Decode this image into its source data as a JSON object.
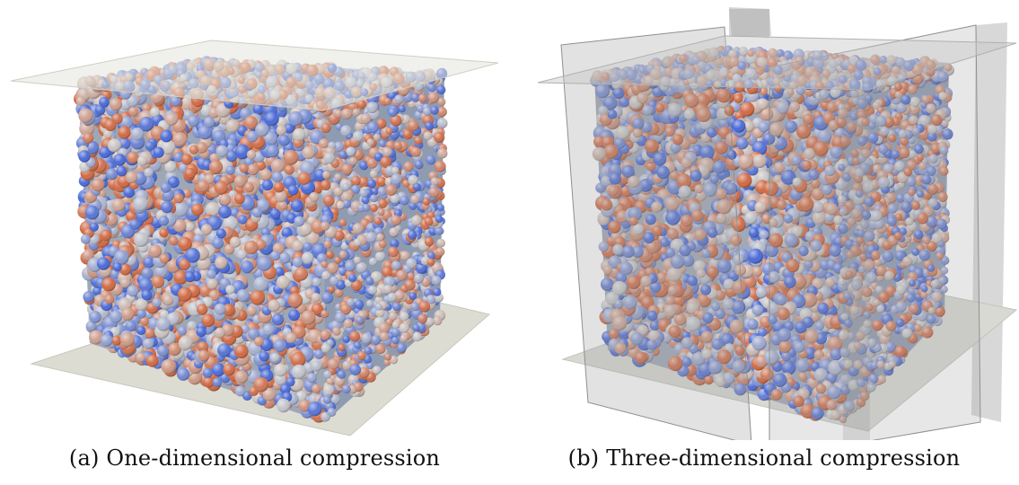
{
  "figure": {
    "panels": [
      {
        "label": "(a)",
        "caption": "One-dimensional compression",
        "boundary_type": "top and bottom plates"
      },
      {
        "label": "(b)",
        "caption": "Three-dimensional compression",
        "boundary_type": "six walls"
      }
    ],
    "colors": {
      "particle_low": "#4a6ad6",
      "particle_mid": "#c9c9c9",
      "particle_high": "#d06a44",
      "plate": "#d9d9d0",
      "wall": "#9a9a9a"
    }
  }
}
